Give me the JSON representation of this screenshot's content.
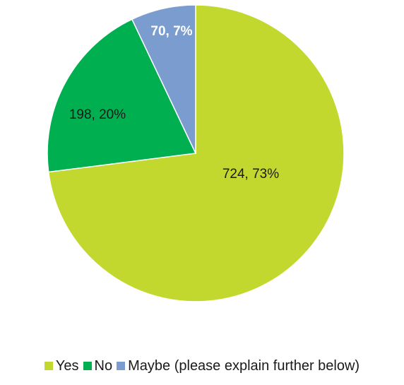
{
  "chart_data": {
    "type": "pie",
    "slices": [
      {
        "name": "Yes",
        "value": 724,
        "label": "724, 73%",
        "color": "#c3d82e",
        "label_color": "#1a1a1a",
        "label_bold": false
      },
      {
        "name": "No",
        "value": 198,
        "label": "198, 20%",
        "color": "#00b050",
        "label_color": "#1a1a1a",
        "label_bold": false
      },
      {
        "name": "Maybe (please explain further below)",
        "value": 70,
        "label": "70, 7%",
        "color": "#7a9ccf",
        "label_color": "#ffffff",
        "label_bold": true
      }
    ],
    "start_angle": "12 o'clock",
    "direction": "clockwise",
    "legend_position": "bottom"
  }
}
